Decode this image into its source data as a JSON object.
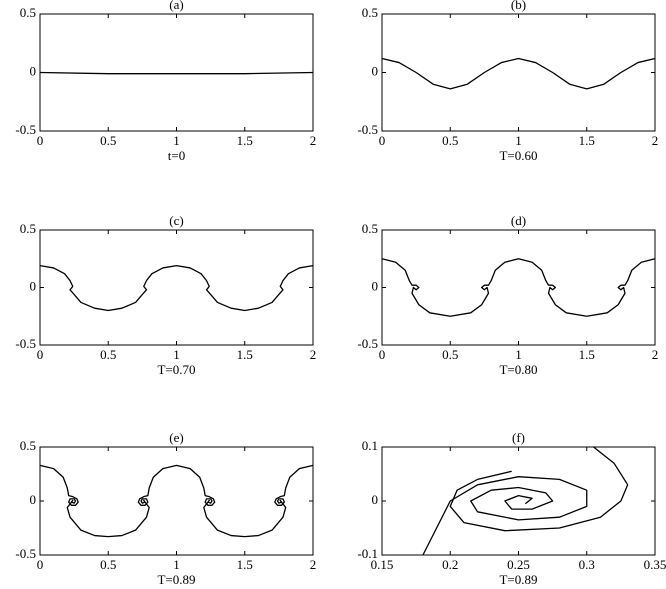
{
  "chart_data": [
    {
      "type": "line",
      "title": "(a)",
      "xlabel": "t=0",
      "xlim": [
        0,
        2
      ],
      "ylim": [
        -0.5,
        0.5
      ],
      "xticks": [
        0,
        0.5,
        1,
        1.5,
        2
      ],
      "yticks": [
        -0.5,
        0,
        0.5
      ],
      "series": [
        {
          "color": "#000000",
          "x": [
            0,
            0.5,
            1,
            1.5,
            2
          ],
          "values": [
            0,
            -0.01,
            -0.01,
            -0.01,
            0
          ]
        }
      ]
    },
    {
      "type": "line",
      "title": "(b)",
      "xlabel": "T=0.60",
      "xlim": [
        0,
        2
      ],
      "ylim": [
        -0.5,
        0.5
      ],
      "xticks": [
        0,
        0.5,
        1,
        1.5,
        2
      ],
      "yticks": [
        -0.5,
        0,
        0.5
      ],
      "series": [
        {
          "color": "#000000",
          "x": [
            0,
            0.125,
            0.25,
            0.375,
            0.5,
            0.625,
            0.75,
            0.875,
            1,
            1.125,
            1.25,
            1.375,
            1.5,
            1.625,
            1.75,
            1.875,
            2
          ],
          "values": [
            0.12,
            0.085,
            0,
            -0.1,
            -0.14,
            -0.1,
            0,
            0.085,
            0.12,
            0.085,
            0,
            -0.1,
            -0.14,
            -0.1,
            0,
            0.085,
            0.12
          ]
        }
      ]
    },
    {
      "type": "line",
      "title": "(c)",
      "xlabel": "T=0.70",
      "xlim": [
        0,
        2
      ],
      "ylim": [
        -0.5,
        0.5
      ],
      "xticks": [
        0,
        0.5,
        1,
        1.5,
        2
      ],
      "yticks": [
        -0.5,
        0,
        0.5
      ],
      "series": [
        {
          "color": "#000000",
          "x": [
            0,
            0.1,
            0.18,
            0.22,
            0.24,
            0.22,
            0.25,
            0.3,
            0.4,
            0.5,
            0.6,
            0.7,
            0.75,
            0.78,
            0.76,
            0.78,
            0.82,
            0.9,
            1,
            1.1,
            1.18,
            1.22,
            1.24,
            1.22,
            1.25,
            1.3,
            1.4,
            1.5,
            1.6,
            1.7,
            1.75,
            1.78,
            1.76,
            1.78,
            1.82,
            1.9,
            2
          ],
          "values": [
            0.19,
            0.17,
            0.12,
            0.06,
            0.01,
            -0.02,
            -0.06,
            -0.13,
            -0.18,
            -0.2,
            -0.18,
            -0.13,
            -0.06,
            -0.02,
            0.01,
            0.06,
            0.12,
            0.17,
            0.19,
            0.17,
            0.12,
            0.06,
            0.01,
            -0.02,
            -0.06,
            -0.13,
            -0.18,
            -0.2,
            -0.18,
            -0.13,
            -0.06,
            -0.02,
            0.01,
            0.06,
            0.12,
            0.17,
            0.19
          ]
        }
      ]
    },
    {
      "type": "line",
      "title": "(d)",
      "xlabel": "T=0.80",
      "xlim": [
        0,
        2
      ],
      "ylim": [
        -0.5,
        0.5
      ],
      "xticks": [
        0,
        0.5,
        1,
        1.5,
        2
      ],
      "yticks": [
        -0.5,
        0,
        0.5
      ],
      "series": [
        {
          "color": "#000000",
          "x": [
            0,
            0.1,
            0.17,
            0.2,
            0.22,
            0.25,
            0.27,
            0.25,
            0.23,
            0.22,
            0.27,
            0.35,
            0.5,
            0.65,
            0.73,
            0.78,
            0.77,
            0.75,
            0.73,
            0.75,
            0.78,
            0.8,
            0.83,
            0.9,
            1,
            1.1,
            1.17,
            1.2,
            1.22,
            1.25,
            1.27,
            1.25,
            1.23,
            1.22,
            1.27,
            1.35,
            1.5,
            1.65,
            1.73,
            1.78,
            1.77,
            1.75,
            1.73,
            1.75,
            1.78,
            1.8,
            1.83,
            1.9,
            2
          ],
          "values": [
            0.25,
            0.22,
            0.15,
            0.06,
            0.02,
            0.02,
            0,
            -0.02,
            0,
            -0.05,
            -0.15,
            -0.22,
            -0.25,
            -0.22,
            -0.15,
            -0.05,
            0,
            -0.02,
            0,
            0.02,
            0.02,
            0.06,
            0.15,
            0.22,
            0.25,
            0.22,
            0.15,
            0.06,
            0.02,
            0.02,
            0,
            -0.02,
            0,
            -0.05,
            -0.15,
            -0.22,
            -0.25,
            -0.22,
            -0.15,
            -0.05,
            0,
            -0.02,
            0,
            0.02,
            0.02,
            0.06,
            0.15,
            0.22,
            0.25
          ]
        }
      ]
    },
    {
      "type": "line",
      "title": "(e)",
      "xlabel": "T=0.89",
      "xlim": [
        0,
        2
      ],
      "ylim": [
        -0.5,
        0.5
      ],
      "xticks": [
        0,
        0.5,
        1,
        1.5,
        2
      ],
      "yticks": [
        -0.5,
        0,
        0.5
      ],
      "series": [
        {
          "color": "#000000",
          "x": [
            0,
            0.1,
            0.17,
            0.2,
            0.21,
            0.24,
            0.27,
            0.28,
            0.26,
            0.23,
            0.21,
            0.22,
            0.25,
            0.26,
            0.25,
            0.23,
            0.24,
            0.2,
            0.22,
            0.3,
            0.4,
            0.5,
            0.6,
            0.7,
            0.78,
            0.8,
            0.76,
            0.77,
            0.75,
            0.74,
            0.75,
            0.78,
            0.79,
            0.77,
            0.74,
            0.72,
            0.73,
            0.76,
            0.79,
            0.8,
            0.83,
            0.9,
            1,
            1.1,
            1.17,
            1.2,
            1.21,
            1.24,
            1.27,
            1.28,
            1.26,
            1.23,
            1.21,
            1.22,
            1.25,
            1.26,
            1.25,
            1.23,
            1.24,
            1.2,
            1.22,
            1.3,
            1.4,
            1.5,
            1.6,
            1.7,
            1.78,
            1.8,
            1.76,
            1.77,
            1.75,
            1.74,
            1.75,
            1.78,
            1.79,
            1.77,
            1.74,
            1.72,
            1.73,
            1.76,
            1.79,
            1.8,
            1.83,
            1.9,
            2
          ],
          "values": [
            0.33,
            0.3,
            0.22,
            0.12,
            0.05,
            0.04,
            0.02,
            -0.01,
            -0.04,
            -0.04,
            -0.01,
            0.02,
            0.02,
            0,
            -0.02,
            -0.01,
            0.005,
            -0.06,
            -0.15,
            -0.27,
            -0.32,
            -0.33,
            -0.32,
            -0.27,
            -0.15,
            -0.06,
            0.005,
            -0.01,
            -0.02,
            0,
            0.02,
            0.02,
            -0.01,
            -0.04,
            -0.04,
            -0.01,
            0.02,
            0.04,
            0.05,
            0.12,
            0.22,
            0.3,
            0.33,
            0.3,
            0.22,
            0.12,
            0.05,
            0.04,
            0.02,
            -0.01,
            -0.04,
            -0.04,
            -0.01,
            0.02,
            0.02,
            0,
            -0.02,
            -0.01,
            0.005,
            -0.06,
            -0.15,
            -0.27,
            -0.32,
            -0.33,
            -0.32,
            -0.27,
            -0.15,
            -0.06,
            0.005,
            -0.01,
            -0.02,
            0,
            0.02,
            0.02,
            -0.01,
            -0.04,
            -0.04,
            -0.01,
            0.02,
            0.04,
            0.05,
            0.12,
            0.22,
            0.3,
            0.33
          ]
        }
      ]
    },
    {
      "type": "line",
      "title": "(f)",
      "xlabel": "T=0.89",
      "xlim": [
        0.15,
        0.35
      ],
      "ylim": [
        -0.1,
        0.1
      ],
      "xticks": [
        0.15,
        0.2,
        0.25,
        0.3,
        0.35
      ],
      "yticks": [
        -0.1,
        0,
        0.1
      ],
      "series": [
        {
          "color": "#000000",
          "x": [
            0.18,
            0.19,
            0.2,
            0.22,
            0.25,
            0.28,
            0.3,
            0.3,
            0.28,
            0.25,
            0.22,
            0.215,
            0.23,
            0.25,
            0.27,
            0.275,
            0.26,
            0.245,
            0.24,
            0.25,
            0.26,
            0.255
          ],
          "values": [
            -0.1,
            -0.05,
            0,
            0.03,
            0.045,
            0.04,
            0.02,
            -0.01,
            -0.03,
            -0.035,
            -0.02,
            0,
            0.02,
            0.025,
            0.015,
            0,
            -0.015,
            -0.015,
            0,
            0.01,
            0.005,
            -0.005
          ]
        },
        {
          "color": "#000000",
          "x": [
            0.305,
            0.32,
            0.33,
            0.325,
            0.31,
            0.28,
            0.24,
            0.21,
            0.2,
            0.205,
            0.22,
            0.245
          ],
          "values": [
            0.1,
            0.07,
            0.03,
            0,
            -0.03,
            -0.05,
            -0.055,
            -0.04,
            -0.01,
            0.02,
            0.04,
            0.055
          ]
        }
      ]
    }
  ]
}
